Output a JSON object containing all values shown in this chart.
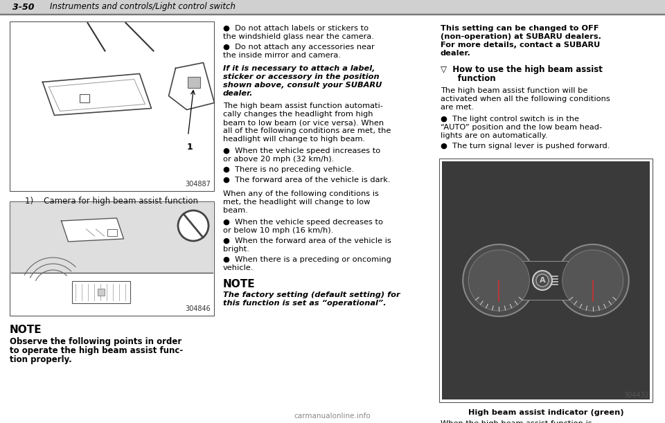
{
  "page_number": "3-50",
  "header_title": "Instruments and controls/Light control switch",
  "bg_color": "#ffffff",
  "header_bg": "#d0d0d0",
  "fig1_code": "304887",
  "fig2_code": "304846",
  "fig3_code": "304432",
  "caption1": "1)    Camera for high beam assist function",
  "note1_title": "NOTE",
  "note1_body": "Observe the following points in order\nto operate the high beam assist func-\ntion properly.",
  "col2_bullets1": [
    "●  Do not attach labels or stickers to\nthe windshield glass near the camera.",
    "●  Do not attach any accessories near\nthe inside mirror and camera."
  ],
  "col2_italic": "If it is necessary to attach a label,\nsticker or accessory in the position\nshown above, consult your SUBARU\ndealer.",
  "col2_para1": "The high beam assist function automati-\ncally changes the headlight from high\nbeam to low beam (or vice versa). When\nall of the following conditions are met, the\nheadlight will change to high beam.",
  "col2_bullets2": [
    "●  When the vehicle speed increases to\nor above 20 mph (32 km/h).",
    "●  There is no preceding vehicle.",
    "●  The forward area of the vehicle is dark."
  ],
  "col2_para2": "When any of the following conditions is\nmet, the headlight will change to low\nbeam.",
  "col2_bullets3": [
    "●  When the vehicle speed decreases to\nor below 10 mph (16 km/h).",
    "●  When the forward area of the vehicle is\nbright.",
    "●  When there is a preceding or oncoming\nvehicle."
  ],
  "note2_title": "NOTE",
  "note2_body": "The factory setting (default setting) for\nthis function is set as “operational”.",
  "col3_para1": "This setting can be changed to OFF\n(non-operation) at SUBARU dealers.\nFor more details, contact a SUBARU\ndealer.",
  "col3_subtitle": "▽  How to use the high beam assist\n      function",
  "col3_para2": "The high beam assist function will be\nactivated when all the following conditions\nare met.",
  "col3_bullets": [
    "●  The light control switch is in the\n“AUTO” position and the low beam head-\nlights are on automatically.",
    "●  The turn signal lever is pushed forward."
  ],
  "col3_fig_caption": "High beam assist indicator (green)",
  "col3_para3": "When the high beam assist function is\nactivated, the high beam assist indicator\non the combination meter will illuminate.",
  "watermark": "carmanualonline.info"
}
